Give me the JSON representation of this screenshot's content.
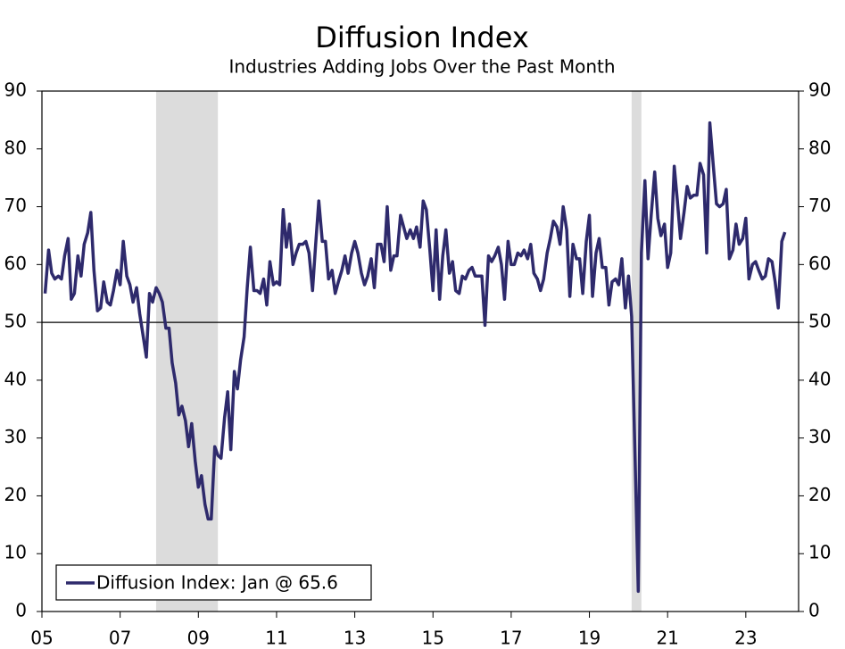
{
  "chart_data": {
    "type": "line",
    "title": "Diffusion Index",
    "subtitle": "Industries Adding Jobs Over the Past Month",
    "xlim": [
      2005,
      2024.35
    ],
    "ylim": [
      0,
      90
    ],
    "xticks": [
      {
        "value": 2005,
        "label": "05"
      },
      {
        "value": 2007,
        "label": "07"
      },
      {
        "value": 2009,
        "label": "09"
      },
      {
        "value": 2011,
        "label": "11"
      },
      {
        "value": 2013,
        "label": "13"
      },
      {
        "value": 2015,
        "label": "15"
      },
      {
        "value": 2017,
        "label": "17"
      },
      {
        "value": 2019,
        "label": "19"
      },
      {
        "value": 2021,
        "label": "21"
      },
      {
        "value": 2023,
        "label": "23"
      }
    ],
    "yticks": [
      0,
      10,
      20,
      30,
      40,
      50,
      60,
      70,
      80,
      90
    ],
    "reference_line": 50,
    "shaded_regions": [
      [
        2007.92,
        2009.5
      ],
      [
        2020.08,
        2020.33
      ]
    ],
    "shade_color": "#dcdcdc",
    "legend": "bottom-left",
    "x": [
      2005.08,
      2005.17,
      2005.25,
      2005.33,
      2005.42,
      2005.5,
      2005.58,
      2005.67,
      2005.75,
      2005.83,
      2005.92,
      2006.0,
      2006.08,
      2006.17,
      2006.25,
      2006.33,
      2006.42,
      2006.5,
      2006.58,
      2006.67,
      2006.75,
      2006.83,
      2006.92,
      2007.0,
      2007.08,
      2007.17,
      2007.25,
      2007.33,
      2007.42,
      2007.5,
      2007.58,
      2007.67,
      2007.75,
      2007.83,
      2007.92,
      2008.0,
      2008.08,
      2008.17,
      2008.25,
      2008.33,
      2008.42,
      2008.5,
      2008.58,
      2008.67,
      2008.75,
      2008.83,
      2008.92,
      2009.0,
      2009.08,
      2009.17,
      2009.25,
      2009.33,
      2009.42,
      2009.5,
      2009.58,
      2009.67,
      2009.75,
      2009.83,
      2009.92,
      2010.0,
      2010.08,
      2010.17,
      2010.25,
      2010.33,
      2010.42,
      2010.5,
      2010.58,
      2010.67,
      2010.75,
      2010.83,
      2010.92,
      2011.0,
      2011.08,
      2011.17,
      2011.25,
      2011.33,
      2011.42,
      2011.5,
      2011.58,
      2011.67,
      2011.75,
      2011.83,
      2011.92,
      2012.0,
      2012.08,
      2012.17,
      2012.25,
      2012.33,
      2012.42,
      2012.5,
      2012.58,
      2012.67,
      2012.75,
      2012.83,
      2012.92,
      2013.0,
      2013.08,
      2013.17,
      2013.25,
      2013.33,
      2013.42,
      2013.5,
      2013.58,
      2013.67,
      2013.75,
      2013.83,
      2013.92,
      2014.0,
      2014.08,
      2014.17,
      2014.25,
      2014.33,
      2014.42,
      2014.5,
      2014.58,
      2014.67,
      2014.75,
      2014.83,
      2014.92,
      2015.0,
      2015.08,
      2015.17,
      2015.25,
      2015.33,
      2015.42,
      2015.5,
      2015.58,
      2015.67,
      2015.75,
      2015.83,
      2015.92,
      2016.0,
      2016.08,
      2016.17,
      2016.25,
      2016.33,
      2016.42,
      2016.5,
      2016.58,
      2016.67,
      2016.75,
      2016.83,
      2016.92,
      2017.0,
      2017.08,
      2017.17,
      2017.25,
      2017.33,
      2017.42,
      2017.5,
      2017.58,
      2017.67,
      2017.75,
      2017.83,
      2017.92,
      2018.0,
      2018.08,
      2018.17,
      2018.25,
      2018.33,
      2018.42,
      2018.5,
      2018.58,
      2018.67,
      2018.75,
      2018.83,
      2018.92,
      2019.0,
      2019.08,
      2019.17,
      2019.25,
      2019.33,
      2019.42,
      2019.5,
      2019.58,
      2019.67,
      2019.75,
      2019.83,
      2019.92,
      2020.0,
      2020.08,
      2020.17,
      2020.25,
      2020.33,
      2020.42,
      2020.5,
      2020.58,
      2020.67,
      2020.75,
      2020.83,
      2020.92,
      2021.0,
      2021.08,
      2021.17,
      2021.25,
      2021.33,
      2021.42,
      2021.5,
      2021.58,
      2021.67,
      2021.75,
      2021.83,
      2021.92,
      2022.0,
      2022.08,
      2022.17,
      2022.25,
      2022.33,
      2022.42,
      2022.5,
      2022.58,
      2022.67,
      2022.75,
      2022.83,
      2022.92,
      2023.0,
      2023.08,
      2023.17,
      2023.25,
      2023.33,
      2023.42,
      2023.5,
      2023.58,
      2023.67,
      2023.75,
      2023.83,
      2023.92,
      2024.0
    ],
    "series": [
      {
        "name": "Diffusion Index: Jan @ 65.6",
        "color": "#2e2a6c",
        "values": [
          55,
          62.5,
          58.5,
          57.5,
          58,
          57.5,
          61.5,
          64.5,
          54,
          55,
          61.5,
          58,
          63.5,
          65.5,
          69,
          59,
          52,
          52.5,
          57,
          53.5,
          53,
          55.5,
          59,
          56.5,
          64,
          58,
          56.5,
          53.5,
          56,
          51.5,
          48,
          44,
          55,
          53.5,
          56,
          55,
          53.5,
          49,
          49,
          43,
          39.5,
          34,
          35.5,
          33,
          28.5,
          32.5,
          26,
          21.5,
          23.5,
          18.5,
          16,
          16,
          28.5,
          27,
          26.5,
          33.5,
          38,
          28,
          41.5,
          38.5,
          43.5,
          47.5,
          56,
          63,
          55.5,
          55.5,
          55,
          57.5,
          53,
          60.5,
          56.5,
          57,
          56.5,
          69.5,
          63,
          67,
          60,
          62,
          63.5,
          63.5,
          64,
          62,
          55.5,
          63.5,
          71,
          64,
          64,
          57.5,
          59,
          55,
          57,
          59,
          61.5,
          58.5,
          62,
          64,
          62,
          58.5,
          56.5,
          58,
          61,
          56,
          63.5,
          63.5,
          60.5,
          70,
          59,
          61.5,
          61.5,
          68.5,
          66.5,
          64.5,
          66,
          64.5,
          66.5,
          63,
          71,
          69.5,
          62.5,
          55.5,
          66,
          54,
          61.5,
          66,
          58.5,
          60.5,
          55.5,
          55,
          58,
          57.5,
          59,
          59.5,
          58,
          58,
          58,
          49.5,
          61.5,
          60.5,
          61.5,
          63,
          60,
          54,
          64,
          60,
          60,
          62,
          61.5,
          62.5,
          61,
          63.5,
          58.5,
          57.5,
          55.5,
          57.5,
          62,
          64.5,
          67.5,
          66.5,
          63.5,
          70,
          66,
          54.5,
          63.5,
          61,
          61,
          55,
          64,
          68.5,
          54.5,
          62,
          64.5,
          59.5,
          59.5,
          53,
          57,
          57.5,
          56.5,
          61,
          52.5,
          58,
          51,
          26,
          3.5,
          62,
          74.5,
          61,
          68.5,
          76,
          68,
          65,
          67,
          59.5,
          62,
          77,
          71,
          64.5,
          69,
          73.5,
          71.5,
          72,
          72,
          77.5,
          75.5,
          62,
          84.5,
          77,
          70.5,
          70,
          70.5,
          73,
          61,
          62.5,
          67,
          63.5,
          64.5,
          68,
          57.5,
          60,
          60.5,
          59,
          57.5,
          58,
          61,
          60.5,
          57,
          52.5,
          64,
          65.6
        ]
      }
    ]
  }
}
